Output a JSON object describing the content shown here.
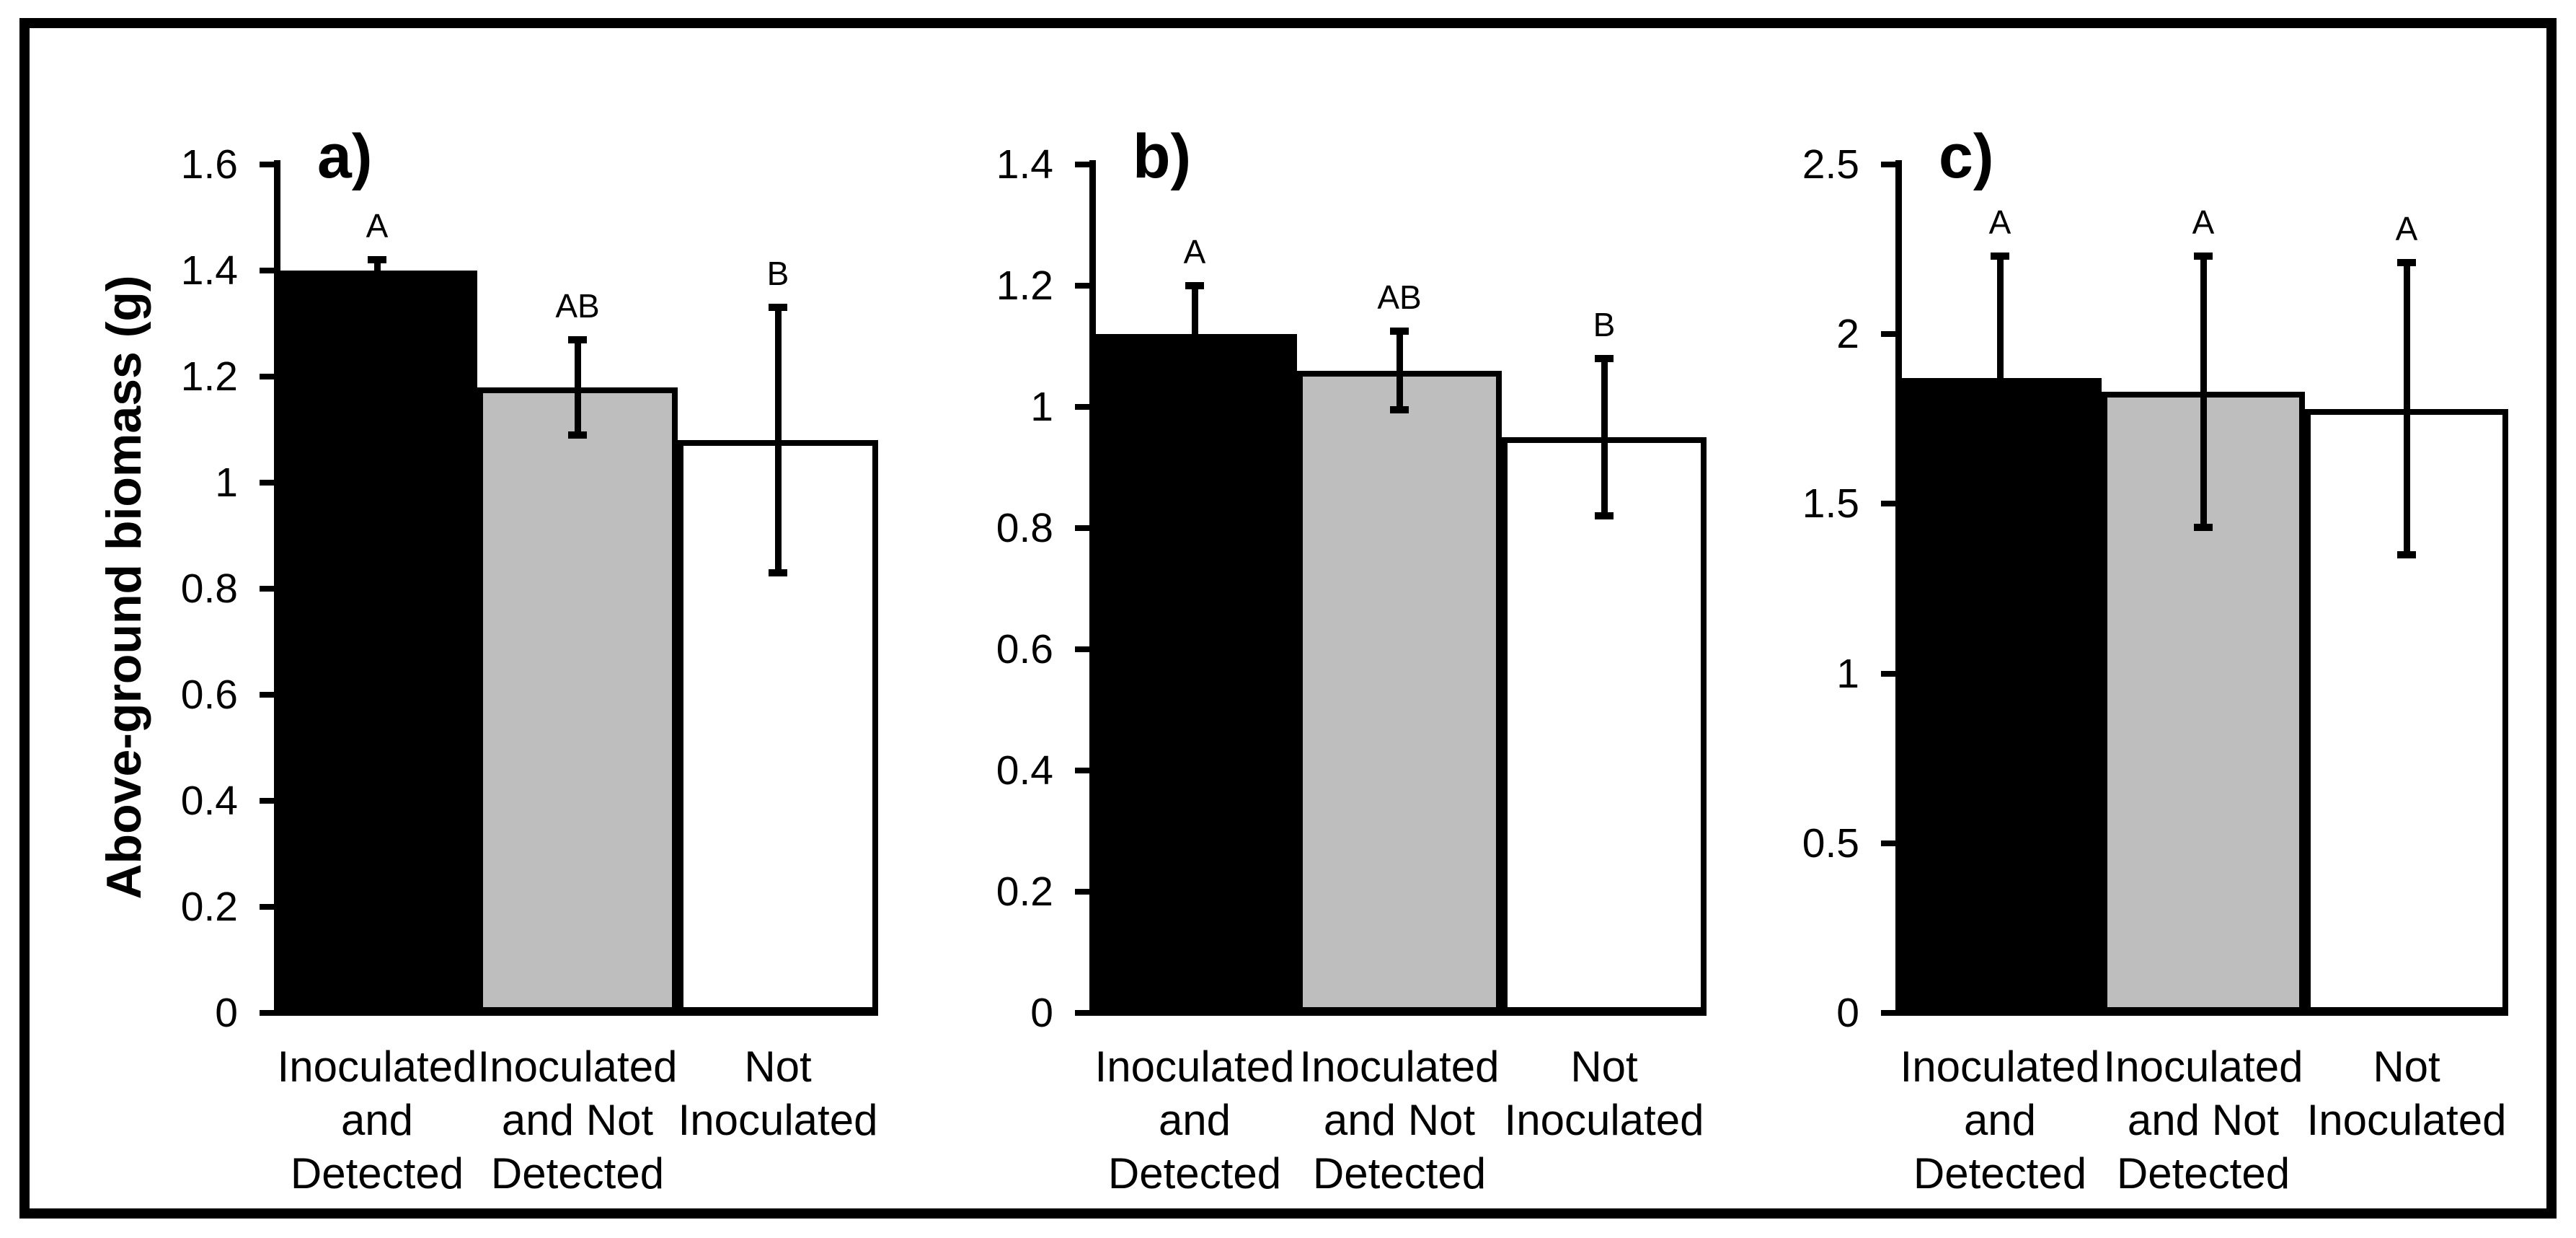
{
  "figure": {
    "y_axis_title": "Above-ground biomass (g)"
  },
  "colors": {
    "ink": "#000000",
    "background": "#ffffff",
    "black_bar_fill": "#000000",
    "gray_bar_fill": "#bebebe",
    "white_bar_fill": "#ffffff"
  },
  "chart_data": [
    {
      "type": "bar",
      "panel_label": "a)",
      "ylabel": "Above-ground biomass (g)",
      "ylim": [
        0,
        1.6
      ],
      "grid": false,
      "yticks": [
        {
          "value": 1.6,
          "label": "1.6"
        },
        {
          "value": 1.4,
          "label": "1.4"
        },
        {
          "value": 1.2,
          "label": "1.2"
        },
        {
          "value": 1.0,
          "label": "1"
        },
        {
          "value": 0.8,
          "label": "0.8"
        },
        {
          "value": 0.6,
          "label": "0.6"
        },
        {
          "value": 0.4,
          "label": "0.4"
        },
        {
          "value": 0.2,
          "label": "0.2"
        },
        {
          "value": 0.0,
          "label": "0"
        }
      ],
      "categories": [
        "Inoculated and Detected",
        "Inoculated and Not Detected",
        "Not Inoculated"
      ],
      "bars": [
        {
          "category": "Inoculated and Detected",
          "category_lines": [
            "Inoculated",
            "and",
            "Detected"
          ],
          "value": 1.4,
          "error": 0.02,
          "sig_letter": "A",
          "fill": "black"
        },
        {
          "category": "Inoculated and Not Detected",
          "category_lines": [
            "Inoculated",
            "and Not",
            "Detected"
          ],
          "value": 1.18,
          "error": 0.09,
          "sig_letter": "AB",
          "fill": "gray"
        },
        {
          "category": "Not Inoculated",
          "category_lines": [
            "Not",
            "Inoculated"
          ],
          "value": 1.08,
          "error": 0.25,
          "sig_letter": "B",
          "fill": "white"
        }
      ]
    },
    {
      "type": "bar",
      "panel_label": "b)",
      "ylabel": "Above-ground biomass (g)",
      "ylim": [
        0,
        1.4
      ],
      "grid": false,
      "yticks": [
        {
          "value": 1.4,
          "label": "1.4"
        },
        {
          "value": 1.2,
          "label": "1.2"
        },
        {
          "value": 1.0,
          "label": "1"
        },
        {
          "value": 0.8,
          "label": "0.8"
        },
        {
          "value": 0.6,
          "label": "0.6"
        },
        {
          "value": 0.4,
          "label": "0.4"
        },
        {
          "value": 0.2,
          "label": "0.2"
        },
        {
          "value": 0.0,
          "label": "0"
        }
      ],
      "categories": [
        "Inoculated and Detected",
        "Inoculated and Not Detected",
        "Not Inoculated"
      ],
      "bars": [
        {
          "category": "Inoculated and Detected",
          "category_lines": [
            "Inoculated",
            "and",
            "Detected"
          ],
          "value": 1.12,
          "error": 0.08,
          "sig_letter": "A",
          "fill": "black"
        },
        {
          "category": "Inoculated and Not Detected",
          "category_lines": [
            "Inoculated",
            "and Not",
            "Detected"
          ],
          "value": 1.06,
          "error": 0.065,
          "sig_letter": "AB",
          "fill": "gray"
        },
        {
          "category": "Not Inoculated",
          "category_lines": [
            "Not",
            "Inoculated"
          ],
          "value": 0.95,
          "error": 0.13,
          "sig_letter": "B",
          "fill": "white"
        }
      ]
    },
    {
      "type": "bar",
      "panel_label": "c)",
      "ylabel": "Above-ground biomass (g)",
      "ylim": [
        0,
        2.5
      ],
      "grid": false,
      "yticks": [
        {
          "value": 2.5,
          "label": "2.5"
        },
        {
          "value": 2.0,
          "label": "2"
        },
        {
          "value": 1.5,
          "label": "1.5"
        },
        {
          "value": 1.0,
          "label": "1"
        },
        {
          "value": 0.5,
          "label": "0.5"
        },
        {
          "value": 0.0,
          "label": "0"
        }
      ],
      "categories": [
        "Inoculated and Detected",
        "Inoculated and Not Detected",
        "Not Inoculated"
      ],
      "bars": [
        {
          "category": "Inoculated and Detected",
          "category_lines": [
            "Inoculated",
            "and",
            "Detected"
          ],
          "value": 1.87,
          "error": 0.36,
          "sig_letter": "A",
          "fill": "black"
        },
        {
          "category": "Inoculated and Not Detected",
          "category_lines": [
            "Inoculated",
            "and Not",
            "Detected"
          ],
          "value": 1.83,
          "error": 0.4,
          "sig_letter": "A",
          "fill": "gray"
        },
        {
          "category": "Not Inoculated",
          "category_lines": [
            "Not",
            "Inoculated"
          ],
          "value": 1.78,
          "error": 0.43,
          "sig_letter": "A",
          "fill": "white"
        }
      ]
    }
  ]
}
